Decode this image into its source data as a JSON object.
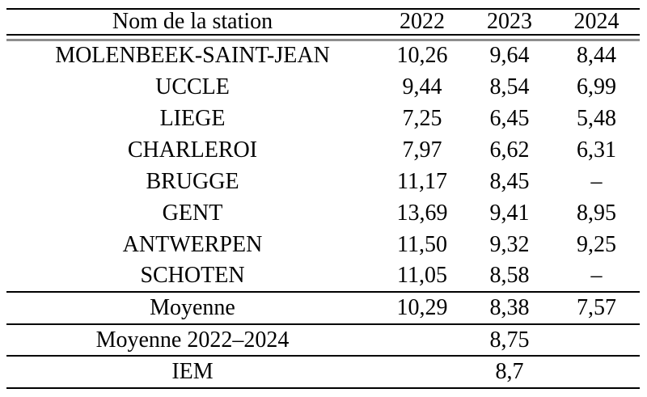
{
  "table": {
    "header": {
      "station": "Nom de la station",
      "y2022": "2022",
      "y2023": "2023",
      "y2024": "2024"
    },
    "rows": [
      {
        "name": "MOLENBEEK-SAINT-JEAN",
        "v2022": "10,26",
        "v2023": "9,64",
        "v2024": "8,44"
      },
      {
        "name": "UCCLE",
        "v2022": "9,44",
        "v2023": "8,54",
        "v2024": "6,99"
      },
      {
        "name": "LIEGE",
        "v2022": "7,25",
        "v2023": "6,45",
        "v2024": "5,48"
      },
      {
        "name": "CHARLEROI",
        "v2022": "7,97",
        "v2023": "6,62",
        "v2024": "6,31"
      },
      {
        "name": "BRUGGE",
        "v2022": "11,17",
        "v2023": "8,45",
        "v2024": "–"
      },
      {
        "name": "GENT",
        "v2022": "13,69",
        "v2023": "9,41",
        "v2024": "8,95"
      },
      {
        "name": "ANTWERPEN",
        "v2022": "11,50",
        "v2023": "9,32",
        "v2024": "9,25"
      },
      {
        "name": "SCHOTEN",
        "v2022": "11,05",
        "v2023": "8,58",
        "v2024": "–"
      }
    ],
    "moyenne": {
      "label": "Moyenne",
      "v2022": "10,29",
      "v2023": "8,38",
      "v2024": "7,57"
    },
    "moyenne_range": {
      "label": "Moyenne 2022–2024",
      "value": "8,75"
    },
    "iem": {
      "label": "IEM",
      "value": "8,7"
    }
  },
  "colors": {
    "text": "#000000",
    "rule_black": "#000000",
    "rule_gray": "#8e8e8e",
    "background": "#ffffff"
  },
  "chart_data": {
    "type": "table",
    "title": "",
    "columns": [
      "Nom de la station",
      "2022",
      "2023",
      "2024"
    ],
    "rows": [
      [
        "MOLENBEEK-SAINT-JEAN",
        10.26,
        9.64,
        8.44
      ],
      [
        "UCCLE",
        9.44,
        8.54,
        6.99
      ],
      [
        "LIEGE",
        7.25,
        6.45,
        5.48
      ],
      [
        "CHARLEROI",
        7.97,
        6.62,
        6.31
      ],
      [
        "BRUGGE",
        11.17,
        8.45,
        null
      ],
      [
        "GENT",
        13.69,
        9.41,
        8.95
      ],
      [
        "ANTWERPEN",
        11.5,
        9.32,
        9.25
      ],
      [
        "SCHOTEN",
        11.05,
        8.58,
        null
      ]
    ],
    "summary_rows": [
      {
        "label": "Moyenne",
        "values": [
          10.29,
          8.38,
          7.57
        ],
        "bold": true
      },
      {
        "label": "Moyenne 2022–2024",
        "values": [
          8.75
        ],
        "bold": false
      },
      {
        "label": "IEM",
        "values": [
          8.7
        ],
        "bold": true
      }
    ],
    "missing_value_symbol": "–",
    "decimal_separator": ","
  }
}
